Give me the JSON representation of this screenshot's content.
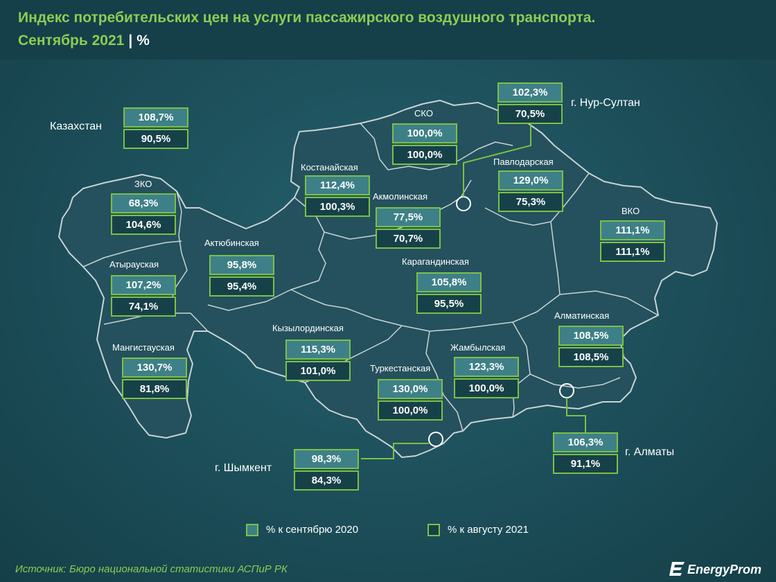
{
  "title": {
    "line1": "Индекс потребительских цен на услуги пассажирского воздушного транспорта.",
    "line2": "Сентябрь 2021",
    "separator": "|",
    "unit": "%"
  },
  "chart_data": {
    "type": "table",
    "title": "Индекс потребительских цен на услуги пассажирского воздушного транспорта. Сентябрь 2021 | %",
    "series_names": [
      "% к сентябрю 2020",
      "% к августу 2021"
    ],
    "regions": [
      {
        "name": "Казахстан",
        "vs_sep_2020": "108,7%",
        "vs_aug_2021": "90,5%"
      },
      {
        "name": "ЗКО",
        "vs_sep_2020": "68,3%",
        "vs_aug_2021": "104,6%"
      },
      {
        "name": "Атырауская",
        "vs_sep_2020": "107,2%",
        "vs_aug_2021": "74,1%"
      },
      {
        "name": "Мангистауская",
        "vs_sep_2020": "130,7%",
        "vs_aug_2021": "81,8%"
      },
      {
        "name": "Актюбинская",
        "vs_sep_2020": "95,8%",
        "vs_aug_2021": "95,4%"
      },
      {
        "name": "Костанайская",
        "vs_sep_2020": "112,4%",
        "vs_aug_2021": "100,3%"
      },
      {
        "name": "СКО",
        "vs_sep_2020": "100,0%",
        "vs_aug_2021": "100,0%"
      },
      {
        "name": "Акмолинская",
        "vs_sep_2020": "77,5%",
        "vs_aug_2021": "70,7%"
      },
      {
        "name": "г. Нур-Султан",
        "vs_sep_2020": "102,3%",
        "vs_aug_2021": "70,5%"
      },
      {
        "name": "Павлодарская",
        "vs_sep_2020": "129,0%",
        "vs_aug_2021": "75,3%"
      },
      {
        "name": "ВКО",
        "vs_sep_2020": "111,1%",
        "vs_aug_2021": "111,1%"
      },
      {
        "name": "Карагандинская",
        "vs_sep_2020": "105,8%",
        "vs_aug_2021": "95,5%"
      },
      {
        "name": "Кызылординская",
        "vs_sep_2020": "115,3%",
        "vs_aug_2021": "101,0%"
      },
      {
        "name": "Туркестанская",
        "vs_sep_2020": "130,0%",
        "vs_aug_2021": "100,0%"
      },
      {
        "name": "Жамбылская",
        "vs_sep_2020": "123,3%",
        "vs_aug_2021": "100,0%"
      },
      {
        "name": "Алматинская",
        "vs_sep_2020": "108,5%",
        "vs_aug_2021": "108,5%"
      },
      {
        "name": "г. Алматы",
        "vs_sep_2020": "106,3%",
        "vs_aug_2021": "91,1%"
      },
      {
        "name": "г. Шымкент",
        "vs_sep_2020": "98,3%",
        "vs_aug_2021": "84,3%"
      }
    ]
  },
  "legend": {
    "item_a": "% к сентябрю 2020",
    "item_b": "% к августу 2021"
  },
  "colors": {
    "accent_green": "#7bc147",
    "title_green": "#8ccd52",
    "box_a_fill": "#3e8087",
    "box_b_fill": "#174149",
    "map_fill": "#24515d"
  },
  "source": "Источник: Бюро национальной статистики АСПиР РК",
  "logo": {
    "text": "EnergyProm",
    "icon": "energyprom-logo-icon"
  }
}
